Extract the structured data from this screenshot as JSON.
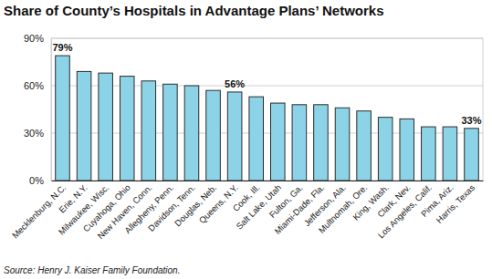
{
  "chart_data": {
    "type": "bar",
    "title": "Share of County’s Hospitals in Advantage Plans’ Networks",
    "source": "Source: Henry J. Kaiser Family Foundation.",
    "categories": [
      "Mecklenburg, N.C.",
      "Erie, N.Y.",
      "Milwaukee, Wisc.",
      "Cuyahoga, Ohio",
      "New Haven, Conn.",
      "Allegheny, Penn.",
      "Davidson, Tenn.",
      "Douglas, Neb.",
      "Queens, N.Y.",
      "Cook, Ill.",
      "Salt Lake, Utah",
      "Fulton, Ga.",
      "Miami-Dade, Fla.",
      "Jefferson, Ala.",
      "Multnomah, Ore.",
      "King, Wash.",
      "Clark, Nev.",
      "Los Angeles, Calif.",
      "Pima, Ariz.",
      "Harris, Texas"
    ],
    "values": [
      79,
      69,
      68,
      66,
      63,
      61,
      60,
      57,
      56,
      53,
      49,
      48,
      48,
      46,
      44,
      40,
      39,
      34,
      34,
      33
    ],
    "data_labels": true,
    "value_labels": [
      "79%",
      null,
      null,
      null,
      null,
      null,
      null,
      null,
      "56%",
      null,
      null,
      null,
      null,
      null,
      null,
      null,
      null,
      null,
      null,
      "33%"
    ],
    "color": "#8dd3e8",
    "ylim": [
      0,
      90
    ],
    "yticks": [
      {
        "value": 0,
        "label": "0%"
      },
      {
        "value": 30,
        "label": "30%"
      },
      {
        "value": 60,
        "label": "60%"
      },
      {
        "value": 90,
        "label": "90%"
      }
    ],
    "grid": true
  }
}
